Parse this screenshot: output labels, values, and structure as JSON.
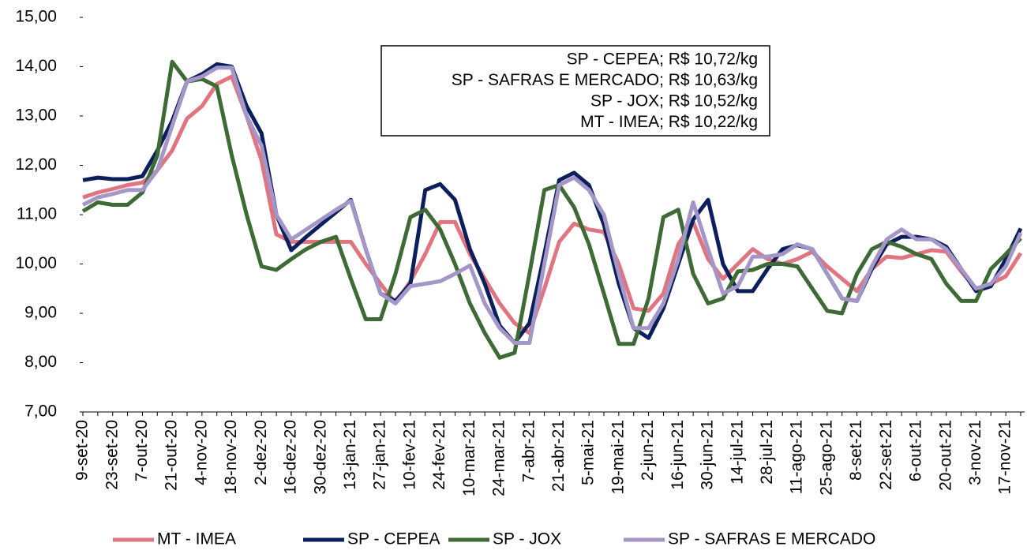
{
  "chart_data": {
    "type": "line",
    "categories": [
      "9-set-20",
      null,
      "23-set-20",
      null,
      "7-out-20",
      null,
      "21-out-20",
      null,
      "4-nov-20",
      null,
      "18-nov-20",
      null,
      "2-dez-20",
      null,
      "16-dez-20",
      null,
      "30-dez-20",
      null,
      "13-jan-21",
      null,
      "27-jan-21",
      null,
      "10-fev-21",
      null,
      "24-fev-21",
      null,
      "10-mar-21",
      null,
      "24-mar-21",
      null,
      "7-abr-21",
      null,
      "21-abr-21",
      null,
      "5-mai-21",
      null,
      "19-mai-21",
      null,
      "2-jun-21",
      null,
      "16-jun-21",
      null,
      "30-jun-21",
      null,
      "14-jul-21",
      null,
      "28-jul-21",
      null,
      "11-ago-21",
      null,
      "25-ago-21",
      null,
      "8-set-21",
      null,
      "22-set-21",
      null,
      "6-out-21",
      null,
      "20-out-21",
      null,
      "3-nov-21",
      null,
      "17-nov-21",
      null
    ],
    "series": [
      {
        "name": "MT - IMEA",
        "color": "#e07480",
        "values": [
          11.35,
          11.45,
          11.52,
          11.6,
          11.65,
          11.9,
          12.3,
          12.95,
          13.2,
          13.65,
          13.8,
          13.0,
          12.1,
          10.6,
          10.45,
          10.45,
          10.45,
          10.45,
          10.45,
          10.0,
          9.6,
          9.2,
          9.65,
          10.2,
          10.85,
          10.85,
          10.2,
          9.7,
          9.2,
          8.8,
          8.6,
          9.5,
          10.45,
          10.82,
          10.7,
          10.65,
          10.0,
          9.1,
          9.05,
          9.4,
          10.4,
          10.85,
          10.1,
          9.7,
          10.0,
          10.3,
          10.1,
          10.0,
          10.1,
          10.25,
          9.95,
          9.7,
          9.45,
          9.9,
          10.15,
          10.12,
          10.2,
          10.28,
          10.25,
          9.85,
          9.5,
          9.6,
          9.75,
          10.22
        ]
      },
      {
        "name": "SP - CEPEA",
        "color": "#0b1f5c",
        "values": [
          11.7,
          11.75,
          11.72,
          11.72,
          11.78,
          12.3,
          12.9,
          13.7,
          13.85,
          14.05,
          14.0,
          13.2,
          12.65,
          11.0,
          10.28,
          10.55,
          10.8,
          11.05,
          11.3,
          10.3,
          9.4,
          9.25,
          9.6,
          11.5,
          11.62,
          11.3,
          10.3,
          9.6,
          8.75,
          8.4,
          8.8,
          10.2,
          11.7,
          11.85,
          11.6,
          10.8,
          9.6,
          8.7,
          8.5,
          9.1,
          10.0,
          10.9,
          11.3,
          10.0,
          9.45,
          9.45,
          9.9,
          10.3,
          10.38,
          10.3,
          9.8,
          9.3,
          9.25,
          9.9,
          10.4,
          10.55,
          10.55,
          10.5,
          10.35,
          9.9,
          9.45,
          9.55,
          10.1,
          10.72
        ]
      },
      {
        "name": "SP - JOX",
        "color": "#3e6b35",
        "values": [
          11.07,
          11.25,
          11.2,
          11.2,
          11.45,
          12.2,
          14.1,
          13.7,
          13.75,
          13.6,
          12.2,
          11.0,
          9.95,
          9.88,
          10.1,
          10.3,
          10.45,
          10.55,
          9.7,
          8.88,
          8.88,
          9.8,
          10.95,
          11.1,
          10.7,
          10.0,
          9.2,
          8.6,
          8.1,
          8.2,
          9.8,
          11.5,
          11.6,
          11.15,
          10.4,
          9.4,
          8.38,
          8.38,
          9.3,
          10.95,
          11.1,
          9.8,
          9.2,
          9.3,
          9.85,
          9.88,
          10.0,
          10.0,
          9.95,
          9.5,
          9.05,
          9.0,
          9.8,
          10.3,
          10.45,
          10.35,
          10.2,
          10.1,
          9.6,
          9.25,
          9.25,
          9.9,
          10.2,
          10.52
        ]
      },
      {
        "name": "SP - SAFRAS E MERCADO",
        "color": "#a596c8",
        "values": [
          11.2,
          11.35,
          11.42,
          11.5,
          11.5,
          11.9,
          12.8,
          13.7,
          13.8,
          13.98,
          13.98,
          13.0,
          12.4,
          11.0,
          10.5,
          10.7,
          10.9,
          11.1,
          11.28,
          10.3,
          9.4,
          9.2,
          9.55,
          9.6,
          9.65,
          9.8,
          9.97,
          9.2,
          8.7,
          8.4,
          8.4,
          10.0,
          11.6,
          11.75,
          11.5,
          11.0,
          9.8,
          8.7,
          8.7,
          9.2,
          10.1,
          11.25,
          10.3,
          9.4,
          9.55,
          10.15,
          10.15,
          10.2,
          10.4,
          10.3,
          9.8,
          9.3,
          9.25,
          9.95,
          10.5,
          10.7,
          10.5,
          10.5,
          10.3,
          9.9,
          9.5,
          9.6,
          9.95,
          10.63
        ]
      }
    ],
    "ylim": [
      7,
      15
    ],
    "yticks": [
      {
        "value": 7,
        "label": "7,00"
      },
      {
        "value": 8,
        "label": "8,00"
      },
      {
        "value": 9,
        "label": "9,00"
      },
      {
        "value": 10,
        "label": "10,00"
      },
      {
        "value": 11,
        "label": "11,00"
      },
      {
        "value": 12,
        "label": "12,00"
      },
      {
        "value": 13,
        "label": "13,00"
      },
      {
        "value": 14,
        "label": "14,00"
      },
      {
        "value": 15,
        "label": "15,00"
      }
    ],
    "annotations": [
      "SP - CEPEA; R$ 10,72/kg",
      "SP - SAFRAS E MERCADO; R$ 10,63/kg",
      "SP - JOX; R$ 10,52/kg",
      "MT - IMEA; R$ 10,22/kg"
    ],
    "legend": "bottom"
  }
}
